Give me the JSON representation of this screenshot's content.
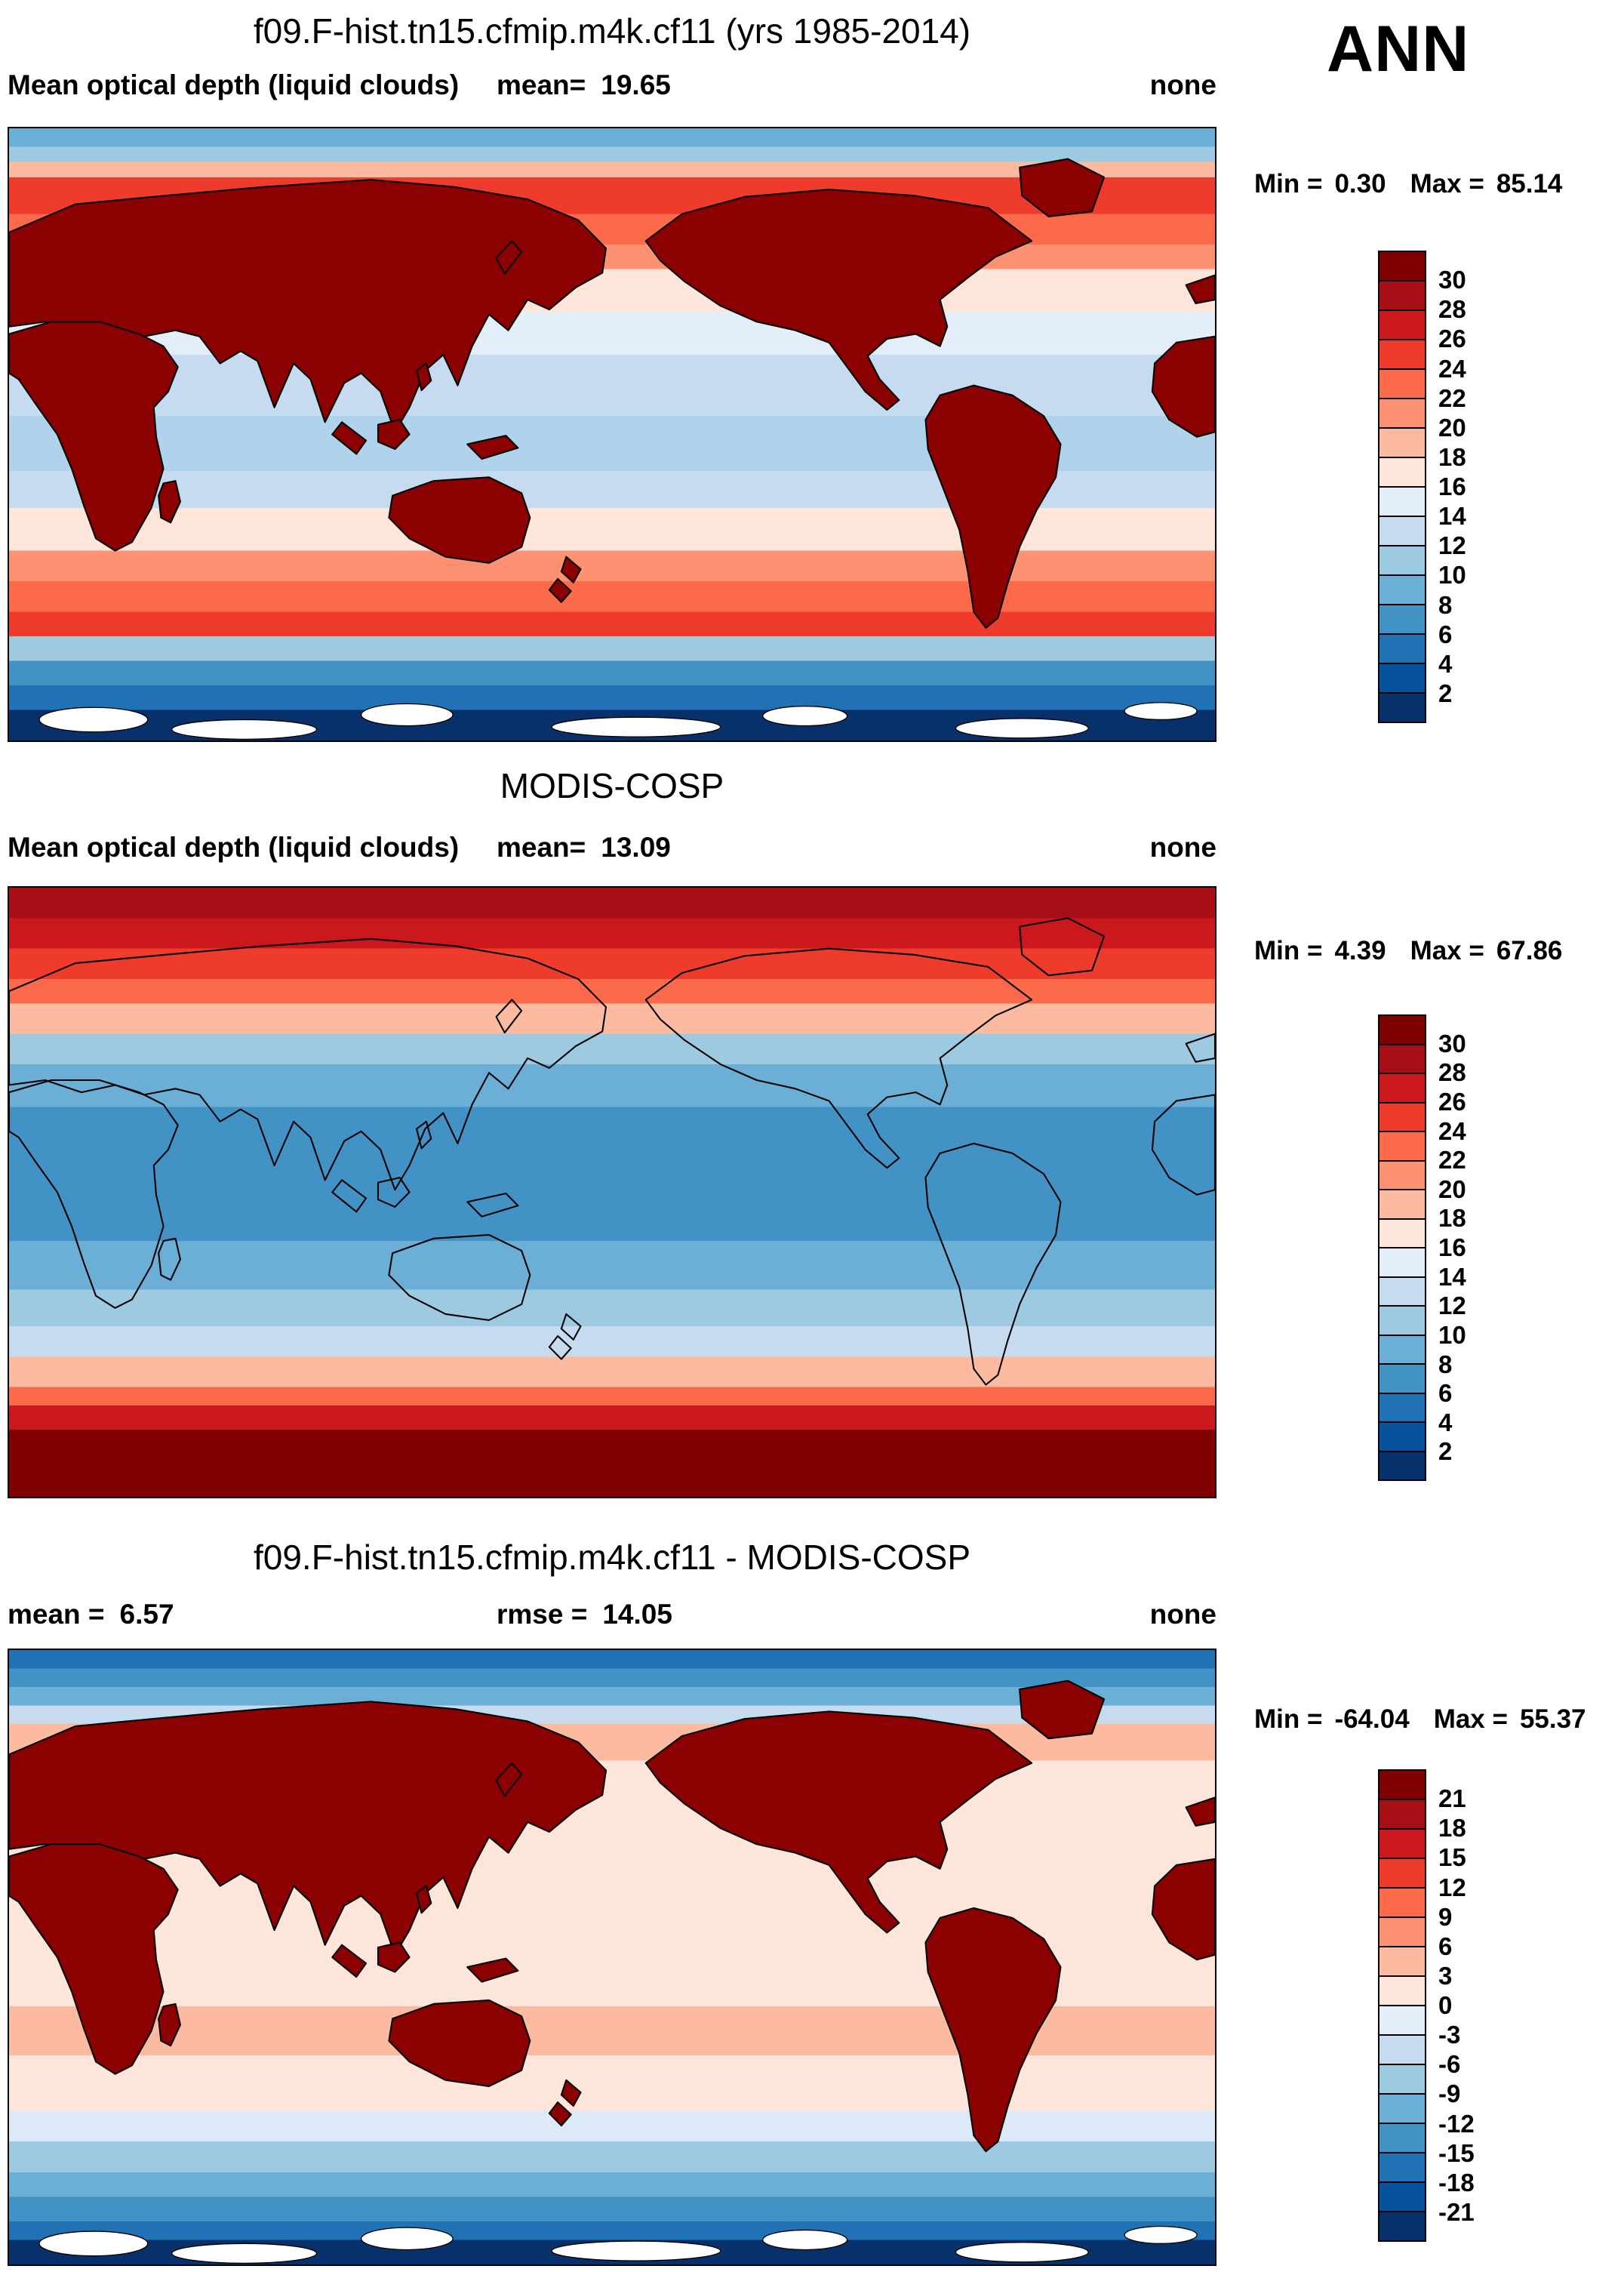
{
  "header": {
    "season": "ANN"
  },
  "panels": [
    {
      "title": "f09.F-hist.tn15.cfmip.m4k.cf11 (yrs 1985-2014)",
      "var_label": "Mean optical depth (liquid clouds)",
      "stats": {
        "label1": "mean=",
        "value1": "19.65",
        "units": "none"
      },
      "minmax": {
        "min_label": "Min =",
        "min_value": "0.30",
        "max_label": "Max =",
        "max_value": "85.14"
      },
      "colorbar": {
        "ticks": [
          "30",
          "28",
          "26",
          "24",
          "22",
          "20",
          "18",
          "16",
          "14",
          "12",
          "10",
          "8",
          "6",
          "4",
          "2"
        ],
        "colors": [
          "#7f0000",
          "#a50f15",
          "#cb181d",
          "#ef3b2c",
          "#fb6a4a",
          "#fc9272",
          "#fcbba1",
          "#fee5d9",
          "#e3eef9",
          "#c6dbef",
          "#9ecae1",
          "#6baed6",
          "#4292c6",
          "#2171b5",
          "#08519c",
          "#08306b"
        ]
      }
    },
    {
      "title": "MODIS-COSP",
      "var_label": "Mean optical depth (liquid clouds)",
      "stats": {
        "label1": "mean=",
        "value1": "13.09",
        "units": "none"
      },
      "minmax": {
        "min_label": "Min =",
        "min_value": "4.39",
        "max_label": "Max =",
        "max_value": "67.86"
      },
      "colorbar": {
        "ticks": [
          "30",
          "28",
          "26",
          "24",
          "22",
          "20",
          "18",
          "16",
          "14",
          "12",
          "10",
          "8",
          "6",
          "4",
          "2"
        ],
        "colors": [
          "#7f0000",
          "#a50f15",
          "#cb181d",
          "#ef3b2c",
          "#fb6a4a",
          "#fc9272",
          "#fcbba1",
          "#fee5d9",
          "#e3eef9",
          "#c6dbef",
          "#9ecae1",
          "#6baed6",
          "#4292c6",
          "#2171b5",
          "#08519c",
          "#08306b"
        ]
      }
    },
    {
      "title": "f09.F-hist.tn15.cfmip.m4k.cf11 - MODIS-COSP",
      "stats": {
        "label1": "mean =",
        "value1": "6.57",
        "label2": "rmse =",
        "value2": "14.05",
        "units": "none"
      },
      "minmax": {
        "min_label": "Min =",
        "min_value": "-64.04",
        "max_label": "Max =",
        "max_value": "55.37"
      },
      "colorbar": {
        "ticks": [
          "21",
          "18",
          "15",
          "12",
          "9",
          "6",
          "3",
          "0",
          "-3",
          "-6",
          "-9",
          "-12",
          "-15",
          "-18",
          "-21"
        ],
        "colors": [
          "#7f0000",
          "#a50f15",
          "#cb181d",
          "#ef3b2c",
          "#fb6a4a",
          "#fc9272",
          "#fcbba1",
          "#fee5d9",
          "#e3eef9",
          "#c6dbef",
          "#9ecae1",
          "#6baed6",
          "#4292c6",
          "#2171b5",
          "#08519c",
          "#08306b"
        ]
      }
    }
  ],
  "chart_data": [
    {
      "type": "heatmap",
      "panel": "model",
      "title": "f09.F-hist.tn15.cfmip.m4k.cf11 (yrs 1985-2014)",
      "variable": "Mean optical depth (liquid clouds)",
      "season": "ANN",
      "units": "none",
      "mean": 19.65,
      "min": 0.3,
      "max": 85.14,
      "contour_levels": [
        2,
        4,
        6,
        8,
        10,
        12,
        14,
        16,
        18,
        20,
        22,
        24,
        26,
        28,
        30
      ],
      "domain": {
        "lon": [
          0,
          360
        ],
        "lat": [
          -90,
          90
        ]
      },
      "legend_position": "right",
      "land_fill": "#8b0000",
      "polar_ice_patches": true,
      "zonal_color_bands": [
        {
          "color": "#6baed6",
          "to": 3
        },
        {
          "color": "#9ecae1",
          "to": 5.5
        },
        {
          "color": "#fcbba1",
          "to": 8
        },
        {
          "color": "#ef3b2c",
          "to": 14
        },
        {
          "color": "#fb6a4a",
          "to": 19
        },
        {
          "color": "#fc9272",
          "to": 23
        },
        {
          "color": "#fee5d9",
          "to": 30
        },
        {
          "color": "#e3eef9",
          "to": 37
        },
        {
          "color": "#c6dbef",
          "to": 47
        },
        {
          "color": "#b0d2ea",
          "to": 56
        },
        {
          "color": "#c6dbef",
          "to": 62
        },
        {
          "color": "#fee5d9",
          "to": 69
        },
        {
          "color": "#fc9272",
          "to": 74
        },
        {
          "color": "#fb6a4a",
          "to": 79
        },
        {
          "color": "#ef3b2c",
          "to": 83
        },
        {
          "color": "#9ecae1",
          "to": 87
        },
        {
          "color": "#4292c6",
          "to": 91
        },
        {
          "color": "#2171b5",
          "to": 95
        },
        {
          "color": "#08306b",
          "to": 100
        }
      ]
    },
    {
      "type": "heatmap",
      "panel": "observation",
      "title": "MODIS-COSP",
      "variable": "Mean optical depth (liquid clouds)",
      "season": "ANN",
      "units": "none",
      "mean": 13.09,
      "min": 4.39,
      "max": 67.86,
      "contour_levels": [
        2,
        4,
        6,
        8,
        10,
        12,
        14,
        16,
        18,
        20,
        22,
        24,
        26,
        28,
        30
      ],
      "domain": {
        "lon": [
          0,
          360
        ],
        "lat": [
          -90,
          90
        ]
      },
      "legend_position": "right",
      "land_fill": "none",
      "polar_ice_patches": false,
      "zonal_color_bands": [
        {
          "color": "#a50f15",
          "to": 5
        },
        {
          "color": "#cb181d",
          "to": 10
        },
        {
          "color": "#ef3b2c",
          "to": 15
        },
        {
          "color": "#fb6a4a",
          "to": 19
        },
        {
          "color": "#fcbba1",
          "to": 24
        },
        {
          "color": "#9ecae1",
          "to": 29
        },
        {
          "color": "#6baed6",
          "to": 36
        },
        {
          "color": "#4292c6",
          "to": 58
        },
        {
          "color": "#6baed6",
          "to": 66
        },
        {
          "color": "#9ecae1",
          "to": 72
        },
        {
          "color": "#c6dbef",
          "to": 77
        },
        {
          "color": "#fcbba1",
          "to": 82
        },
        {
          "color": "#fb6a4a",
          "to": 85
        },
        {
          "color": "#cb181d",
          "to": 89
        },
        {
          "color": "#7f0000",
          "to": 100
        }
      ]
    },
    {
      "type": "heatmap",
      "panel": "difference",
      "title": "f09.F-hist.tn15.cfmip.m4k.cf11 - MODIS-COSP",
      "variable": "Mean optical depth (liquid clouds)",
      "season": "ANN",
      "units": "none",
      "mean": 6.57,
      "rmse": 14.05,
      "min": -64.04,
      "max": 55.37,
      "contour_levels": [
        -21,
        -18,
        -15,
        -12,
        -9,
        -6,
        -3,
        0,
        3,
        6,
        9,
        12,
        15,
        18,
        21
      ],
      "domain": {
        "lon": [
          0,
          360
        ],
        "lat": [
          -90,
          90
        ]
      },
      "legend_position": "right",
      "land_fill": "#8b0000",
      "polar_ice_patches": true,
      "zonal_color_bands": [
        {
          "color": "#2171b5",
          "to": 3
        },
        {
          "color": "#4292c6",
          "to": 6
        },
        {
          "color": "#6baed6",
          "to": 9
        },
        {
          "color": "#c6dbef",
          "to": 12
        },
        {
          "color": "#fcbba1",
          "to": 18
        },
        {
          "color": "#fee5d9",
          "to": 58
        },
        {
          "color": "#fcbba1",
          "to": 66
        },
        {
          "color": "#fee5d9",
          "to": 75
        },
        {
          "color": "#dceaf7",
          "to": 80
        },
        {
          "color": "#9ecae1",
          "to": 85
        },
        {
          "color": "#6baed6",
          "to": 89
        },
        {
          "color": "#4292c6",
          "to": 93
        },
        {
          "color": "#2171b5",
          "to": 96
        },
        {
          "color": "#08306b",
          "to": 100
        }
      ]
    }
  ]
}
